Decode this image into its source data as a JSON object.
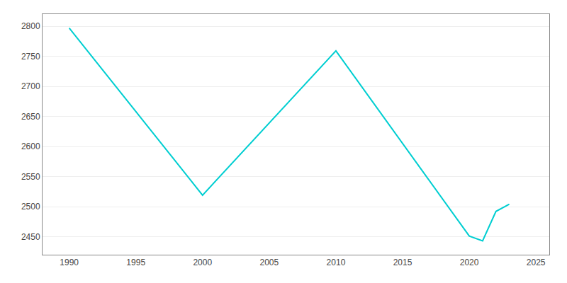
{
  "chart_data": {
    "type": "line",
    "x": [
      1990,
      2000,
      2010,
      2020,
      2021,
      2022,
      2023
    ],
    "values": [
      2797,
      2519,
      2759,
      2451,
      2443,
      2492,
      2504
    ],
    "color": "#00CED1",
    "xlim": [
      1988,
      2026
    ],
    "xticks": [
      1990,
      1995,
      2000,
      2005,
      2010,
      2015,
      2020,
      2025
    ],
    "ylim": [
      2420,
      2820
    ],
    "yticks": [
      2450,
      2500,
      2550,
      2600,
      2650,
      2700,
      2750,
      2800
    ],
    "grid": true
  }
}
